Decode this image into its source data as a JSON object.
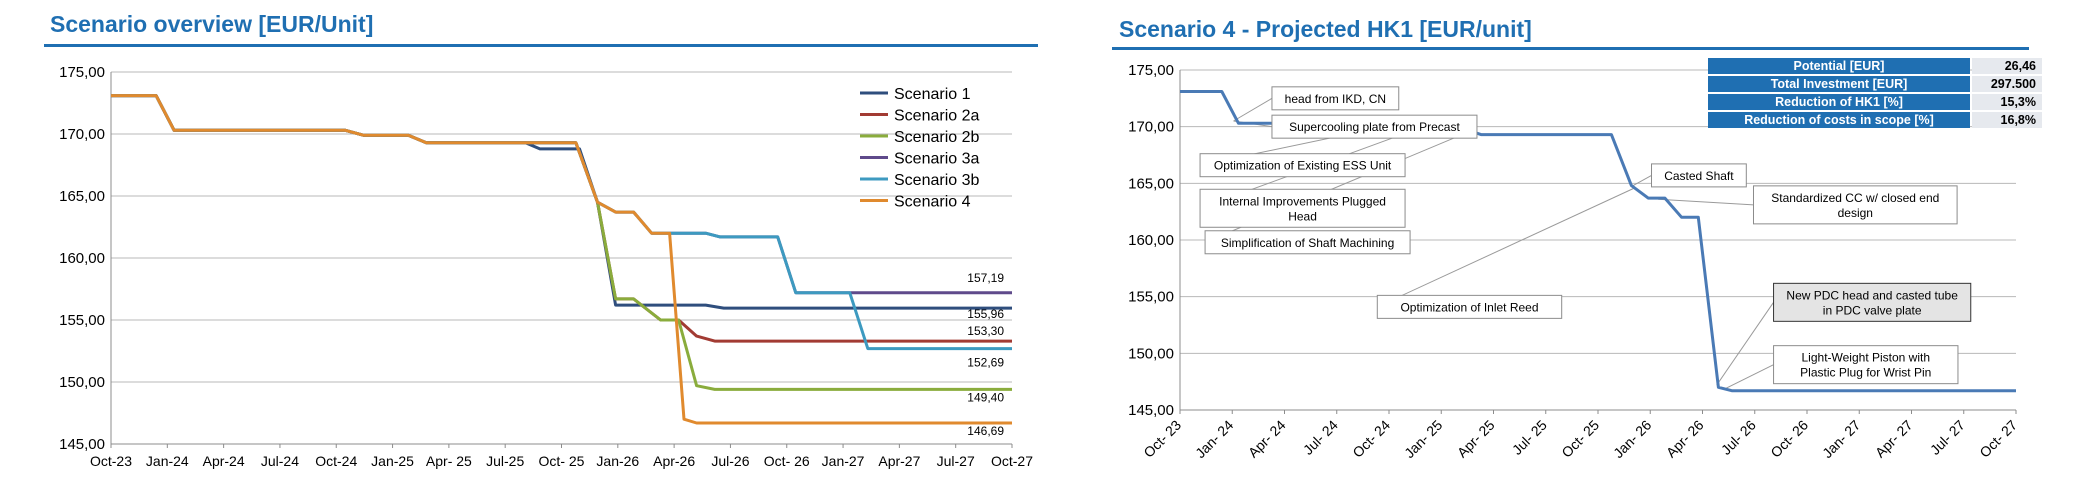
{
  "left_title": "Scenario overview  [EUR/Unit]",
  "right_title": "Scenario 4 - Projected HK1 [EUR/unit]",
  "kpi_table": [
    {
      "label": "Potential [EUR]",
      "value": "26,46"
    },
    {
      "label": "Total Investment [EUR]",
      "value": "297.500"
    },
    {
      "label": "Reduction of HK1 [%]",
      "value": "15,3%"
    },
    {
      "label": "Reduction of costs in scope [%]",
      "value": "16,8%"
    }
  ],
  "chart_data": [
    {
      "type": "line",
      "title": "Scenario overview  [EUR/Unit]",
      "x_tick_labels": [
        "Oct-23",
        "Jan-24",
        "Apr-24",
        "Jul-24",
        "Oct-24",
        "Jan-25",
        "Apr- 25",
        "Jul-25",
        "Oct- 25",
        "Jan-26",
        "Apr-26",
        "Jul-26",
        "Oct- 26",
        "Jan-27",
        "Apr-27",
        "Jul-27",
        "Oct-27"
      ],
      "y_tick_labels": [
        "175,00",
        "170,00",
        "165,00",
        "160,00",
        "155,00",
        "150,00",
        "145,00"
      ],
      "xlim": [
        0,
        50
      ],
      "ylim": [
        145,
        175
      ],
      "grid": true,
      "legend_position": "top-right",
      "x_unit": "months since Oct-23",
      "series": [
        {
          "name": "Scenario 1",
          "color": "#2f4e7d",
          "points": [
            [
              0,
              173.1
            ],
            [
              2.5,
              173.1
            ],
            [
              3.5,
              170.3
            ],
            [
              13,
              170.3
            ],
            [
              14,
              169.9
            ],
            [
              16.5,
              169.9
            ],
            [
              17.5,
              169.3
            ],
            [
              23,
              169.3
            ],
            [
              23.8,
              168.8
            ],
            [
              26,
              168.8
            ],
            [
              27,
              164.5
            ],
            [
              28,
              156.2
            ],
            [
              33,
              156.2
            ],
            [
              34,
              155.96
            ],
            [
              50,
              155.96
            ]
          ]
        },
        {
          "name": "Scenario 2a",
          "color": "#a23b33",
          "points": [
            [
              0,
              173.1
            ],
            [
              2.5,
              173.1
            ],
            [
              3.5,
              170.3
            ],
            [
              13,
              170.3
            ],
            [
              14,
              169.9
            ],
            [
              16.5,
              169.9
            ],
            [
              17.5,
              169.3
            ],
            [
              25.8,
              169.3
            ],
            [
              27,
              164.5
            ],
            [
              28,
              156.7
            ],
            [
              29,
              156.7
            ],
            [
              30.5,
              155
            ],
            [
              31.5,
              155
            ],
            [
              32.5,
              153.7
            ],
            [
              33.5,
              153.3
            ],
            [
              50,
              153.3
            ]
          ]
        },
        {
          "name": "Scenario 2b",
          "color": "#8aac3c",
          "points": [
            [
              0,
              173.1
            ],
            [
              2.5,
              173.1
            ],
            [
              3.5,
              170.3
            ],
            [
              13,
              170.3
            ],
            [
              14,
              169.9
            ],
            [
              16.5,
              169.9
            ],
            [
              17.5,
              169.3
            ],
            [
              25.8,
              169.3
            ],
            [
              27,
              164.5
            ],
            [
              28,
              156.7
            ],
            [
              29,
              156.7
            ],
            [
              30.5,
              155
            ],
            [
              31.5,
              155
            ],
            [
              32.5,
              149.7
            ],
            [
              33.5,
              149.4
            ],
            [
              50,
              149.4
            ]
          ]
        },
        {
          "name": "Scenario 3a",
          "color": "#5f4a8b",
          "points": [
            [
              0,
              173.1
            ],
            [
              2.5,
              173.1
            ],
            [
              3.5,
              170.3
            ],
            [
              13,
              170.3
            ],
            [
              14,
              169.9
            ],
            [
              16.5,
              169.9
            ],
            [
              17.5,
              169.3
            ],
            [
              25.8,
              169.3
            ],
            [
              27,
              164.5
            ],
            [
              28,
              163.7
            ],
            [
              29,
              163.7
            ],
            [
              30,
              162
            ],
            [
              33,
              162
            ],
            [
              33.8,
              161.7
            ],
            [
              37,
              161.7
            ],
            [
              38,
              157.19
            ],
            [
              50,
              157.19
            ]
          ]
        },
        {
          "name": "Scenario 3b",
          "color": "#3d9ac0",
          "points": [
            [
              0,
              173.1
            ],
            [
              2.5,
              173.1
            ],
            [
              3.5,
              170.3
            ],
            [
              13,
              170.3
            ],
            [
              14,
              169.9
            ],
            [
              16.5,
              169.9
            ],
            [
              17.5,
              169.3
            ],
            [
              25.8,
              169.3
            ],
            [
              27,
              164.5
            ],
            [
              28,
              163.7
            ],
            [
              29,
              163.7
            ],
            [
              30,
              162
            ],
            [
              33,
              162
            ],
            [
              33.8,
              161.7
            ],
            [
              37,
              161.7
            ],
            [
              38,
              157.19
            ],
            [
              41,
              157.19
            ],
            [
              42,
              152.69
            ],
            [
              50,
              152.69
            ]
          ]
        },
        {
          "name": "Scenario 4",
          "color": "#e08a2e",
          "points": [
            [
              0,
              173.1
            ],
            [
              2.5,
              173.1
            ],
            [
              3.5,
              170.3
            ],
            [
              13,
              170.3
            ],
            [
              14,
              169.9
            ],
            [
              16.5,
              169.9
            ],
            [
              17.5,
              169.3
            ],
            [
              25.8,
              169.3
            ],
            [
              27,
              164.5
            ],
            [
              28,
              163.7
            ],
            [
              29,
              163.7
            ],
            [
              30,
              162
            ],
            [
              31,
              162
            ],
            [
              31.8,
              147
            ],
            [
              32.5,
              146.69
            ],
            [
              50,
              146.69
            ]
          ]
        }
      ],
      "end_labels": [
        "157,19",
        "155,96",
        "153,30",
        "152,69",
        "149,40",
        "146,69"
      ],
      "end_label_values": [
        157.19,
        155.96,
        153.3,
        152.69,
        149.4,
        146.69
      ]
    },
    {
      "type": "line",
      "title": "Scenario 4 - Projected HK1 [EUR/unit]",
      "x_tick_labels": [
        "Oct- 23",
        "Jan- 24",
        "Apr- 24",
        "Jul- 24",
        "Oct- 24",
        "Jan- 25",
        "Apr- 25",
        "Jul- 25",
        "Oct- 25",
        "Jan- 26",
        "Apr- 26",
        "Jul- 26",
        "Oct- 26",
        "Jan- 27",
        "Apr- 27",
        "Jul- 27",
        "Oct- 27"
      ],
      "y_tick_labels": [
        "175,00",
        "170,00",
        "165,00",
        "160,00",
        "155,00",
        "150,00",
        "145,00"
      ],
      "xlim": [
        0,
        50
      ],
      "ylim": [
        145,
        175
      ],
      "grid": true,
      "x_unit": "months since Oct-23",
      "series": [
        {
          "color": "#4a7ab5",
          "points": [
            [
              0,
              173.1
            ],
            [
              2.5,
              173.1
            ],
            [
              3.5,
              170.3
            ],
            [
              13,
              170.3
            ],
            [
              14,
              169.8
            ],
            [
              17,
              169.8
            ],
            [
              18,
              169.3
            ],
            [
              25.8,
              169.3
            ],
            [
              27,
              164.8
            ],
            [
              28,
              163.7
            ],
            [
              29,
              163.7
            ],
            [
              30,
              162
            ],
            [
              31,
              162
            ],
            [
              32.2,
              147
            ],
            [
              33,
              146.7
            ],
            [
              50,
              146.7
            ]
          ]
        }
      ],
      "annotations": [
        {
          "text": "head from IKD, CN",
          "box_x": 5.5,
          "box_y": 172.5,
          "target_x": 3.2,
          "target_y": 170.5
        },
        {
          "text": "Supercooling plate from Precast",
          "box_x": 5.5,
          "box_y": 170.0,
          "target_x": 3.2,
          "target_y": 170.5
        },
        {
          "text": "Optimization of Existing ESS Unit",
          "box_x": 1.2,
          "box_y": 166.6,
          "target_x": 13.2,
          "target_y": 170.3
        },
        {
          "text": "Internal Improvements  Plugged Head",
          "box_x": 1.2,
          "box_y": 162.8,
          "target_x": 14.2,
          "target_y": 169.8
        },
        {
          "text": "Simplification of Shaft Machining",
          "box_x": 1.5,
          "box_y": 159.8,
          "target_x": 17.2,
          "target_y": 169.5
        },
        {
          "text": "Optimization of Inlet Reed",
          "box_x": 11.8,
          "box_y": 154.1,
          "target_x": 27.2,
          "target_y": 164.6
        },
        {
          "text": "Casted Shaft",
          "box_x": 28.2,
          "box_y": 165.7,
          "target_x": 27.1,
          "target_y": 164.8
        },
        {
          "text": "Standardized CC w/ closed end design",
          "box_x": 34.3,
          "box_y": 163.1,
          "target_x": 28.6,
          "target_y": 163.6
        },
        {
          "text": "New PDC head and casted tube in PDC valve  plate",
          "box_x": 35.5,
          "box_y": 154.5,
          "target_x": 32.1,
          "target_y": 147.2
        },
        {
          "text": "Light-Weight Piston with Plastic Plug for Wrist Pin",
          "box_x": 35.5,
          "box_y": 149.0,
          "target_x": 32.5,
          "target_y": 146.8
        }
      ]
    }
  ]
}
